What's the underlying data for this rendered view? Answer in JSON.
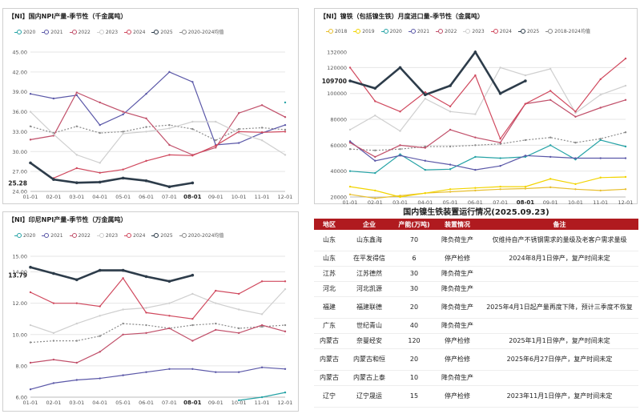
{
  "colors": {
    "2018": "#e8bf2e",
    "2019": "#f2d400",
    "2020": "#26a3a6",
    "2021": "#5b58a8",
    "2022": "#c1506a",
    "2023": "#cfcfcf",
    "2024": "#d0495e",
    "2025": "#2d3c4a",
    "avg": "#8a8a8a",
    "header_bg": "#b01a1f"
  },
  "chart_data": [
    {
      "type": "line",
      "title": "【NI】国内NPI产量-季节性（千金属吨）",
      "categories": [
        "01-01",
        "02-01",
        "03-01",
        "04-01",
        "05-01",
        "06-01",
        "07-01",
        "08-01",
        "09-01",
        "10-01",
        "11-01",
        "12-01"
      ],
      "y_ticks": [
        "24.00",
        "27.00",
        "30.00",
        "33.00",
        "36.00",
        "39.00",
        "42.00",
        "45.00"
      ],
      "ylim": [
        24,
        45
      ],
      "latest_label": "25.28",
      "legend": [
        "2020",
        "2021",
        "2022",
        "2023",
        "2024",
        "2025",
        "2020-2024均值"
      ],
      "series": [
        {
          "name": "2021",
          "values": [
            38.7,
            38.0,
            38.5,
            34.0,
            35.6,
            38.7,
            42.0,
            40.5,
            31.0,
            31.3,
            32.8,
            34.0
          ]
        },
        {
          "name": "2022",
          "values": [
            31.8,
            32.4,
            38.9,
            37.4,
            36.0,
            35.0,
            31.0,
            29.5,
            30.6,
            35.8,
            37.0,
            35.2
          ]
        },
        {
          "name": "2023",
          "values": [
            36.0,
            32.6,
            29.5,
            28.3,
            32.7,
            33.0,
            33.5,
            34.5,
            34.5,
            32.8,
            31.7,
            29.5
          ]
        },
        {
          "name": "2024",
          "values": [
            null,
            26.0,
            27.5,
            26.8,
            27.3,
            28.6,
            29.5,
            29.4,
            30.9,
            33.0,
            32.9,
            33.0
          ]
        },
        {
          "name": "2025",
          "values": [
            28.3,
            25.8,
            25.3,
            25.4,
            26.0,
            25.6,
            24.7,
            25.28,
            null,
            null,
            null,
            null
          ]
        },
        {
          "name": "2020-2024均值",
          "values": [
            33.8,
            32.8,
            33.8,
            32.8,
            33.0,
            33.7,
            34.0,
            33.4,
            31.7,
            33.4,
            33.6,
            33.3
          ]
        },
        {
          "name": "2020",
          "values": [
            null,
            null,
            null,
            null,
            null,
            null,
            null,
            null,
            null,
            null,
            null,
            37.4
          ]
        }
      ]
    },
    {
      "type": "line",
      "title": "【NI】镍铁（包括镍生铁）月度进口量-季节性（金属吨）",
      "categories": [
        "01-01",
        "02-01",
        "03-01",
        "04-01",
        "05-01",
        "06-01",
        "07-01",
        "08-01",
        "09-01",
        "10-01",
        "11-01",
        "12-01"
      ],
      "y_ticks": [
        "20000",
        "40000",
        "60000",
        "80000",
        "100000",
        "120000"
      ],
      "extra_tick": "132000",
      "ylim": [
        20000,
        132000
      ],
      "latest_label": "109700",
      "legend": [
        "2018",
        "2019",
        "2020",
        "2021",
        "2022",
        "2023",
        "2024",
        "2025",
        "2018-2024均值"
      ],
      "series": [
        {
          "name": "2018",
          "values": [
            22000,
            19000,
            21000,
            23000,
            24000,
            25000,
            26000,
            26500,
            27500,
            26000,
            25000,
            26000
          ]
        },
        {
          "name": "2019",
          "values": [
            28000,
            25000,
            20000,
            23000,
            26000,
            27000,
            28000,
            28000,
            34000,
            30000,
            35000,
            35500
          ]
        },
        {
          "name": "2020",
          "values": [
            40000,
            38500,
            53000,
            41000,
            41500,
            51000,
            50000,
            51000,
            60000,
            49000,
            64000,
            59000
          ]
        },
        {
          "name": "2021",
          "values": [
            63000,
            48000,
            52000,
            48000,
            45000,
            41000,
            44000,
            52000,
            51000,
            50000,
            50000,
            50000
          ]
        },
        {
          "name": "2022",
          "values": [
            62000,
            51000,
            60000,
            58000,
            72000,
            66000,
            62000,
            92000,
            95000,
            82000,
            89000,
            95000
          ]
        },
        {
          "name": "2023",
          "values": [
            72000,
            83000,
            71000,
            96000,
            86000,
            84000,
            120000,
            114000,
            119000,
            85000,
            99000,
            106000
          ]
        },
        {
          "name": "2024",
          "values": [
            120000,
            94000,
            86000,
            101000,
            90000,
            114000,
            65000,
            92000,
            102000,
            86000,
            111000,
            127000
          ]
        },
        {
          "name": "2025",
          "values": [
            109700,
            104000,
            120000,
            99000,
            106000,
            132000,
            100000,
            109700,
            null,
            null,
            null,
            null
          ]
        },
        {
          "name": "2018-2024均值",
          "values": [
            57000,
            56000,
            57000,
            59000,
            59000,
            60000,
            61000,
            64000,
            66000,
            62000,
            65000,
            70000
          ]
        }
      ]
    },
    {
      "type": "line",
      "title": "【NI】印尼NPI产量-季节性（万金属吨）",
      "categories": [
        "01-01",
        "02-01",
        "03-01",
        "04-01",
        "05-01",
        "06-01",
        "07-01",
        "08-01",
        "09-01",
        "10-01",
        "11-01",
        "12-01"
      ],
      "y_ticks": [
        "6.00",
        "8.00",
        "10.00",
        "12.00",
        "14.00",
        "15.00"
      ],
      "ylim": [
        6,
        15
      ],
      "latest_label": "13.79",
      "legend": [
        "2020",
        "2021",
        "2022",
        "2023",
        "2024",
        "2025",
        "2020-2024均值"
      ],
      "series": [
        {
          "name": "2020",
          "values": [
            null,
            null,
            null,
            null,
            null,
            null,
            null,
            null,
            null,
            5.8,
            6.0,
            6.3
          ]
        },
        {
          "name": "2021",
          "values": [
            6.5,
            6.9,
            7.1,
            7.2,
            7.4,
            7.6,
            7.8,
            7.8,
            7.6,
            7.6,
            7.9,
            7.8
          ]
        },
        {
          "name": "2022",
          "values": [
            8.2,
            8.4,
            8.2,
            8.9,
            10.0,
            10.1,
            10.4,
            9.6,
            10.3,
            10.1,
            10.6,
            10.2
          ]
        },
        {
          "name": "2023",
          "values": [
            10.6,
            10.1,
            10.7,
            11.2,
            11.6,
            11.7,
            12.0,
            12.6,
            12.0,
            11.6,
            11.3,
            12.9
          ]
        },
        {
          "name": "2024",
          "values": [
            12.7,
            12.0,
            12.0,
            11.8,
            13.6,
            11.4,
            11.2,
            11.0,
            12.8,
            12.6,
            13.4,
            13.4
          ]
        },
        {
          "name": "2025",
          "values": [
            14.3,
            13.9,
            13.5,
            14.1,
            14.1,
            13.7,
            13.4,
            13.79,
            null,
            null,
            null,
            null
          ]
        },
        {
          "name": "2020-2024均值",
          "values": [
            9.5,
            9.6,
            9.6,
            9.9,
            10.7,
            10.6,
            10.4,
            10.6,
            10.7,
            10.4,
            10.5,
            10.6
          ]
        }
      ]
    }
  ],
  "table": {
    "title": "国内镍生铁装置运行情况(2025.09.23)",
    "headers": [
      "地区",
      "企业",
      "产能(万吨)",
      "装置情况",
      "备注"
    ],
    "rows": [
      [
        "山东",
        "山东鑫海",
        "70",
        "降负荷生产",
        "仅维持自产不锈钢需求的量级及老客户需求量级"
      ],
      [
        "山东",
        "在平发得信",
        "6",
        "停产检修",
        "2024年8月1日停产，复产时间未定"
      ],
      [
        "江苏",
        "江苏德然",
        "30",
        "降负荷生产",
        ""
      ],
      [
        "河北",
        "河北凯源",
        "30",
        "降负荷生产",
        ""
      ],
      [
        "福建",
        "福建联德",
        "20",
        "降负荷生产",
        "2025年4月1日起产量再度下降，预计三季度不恢复"
      ],
      [
        "广东",
        "世纪青山",
        "40",
        "降负荷生产",
        ""
      ],
      [
        "内蒙古",
        "奈曼经安",
        "120",
        "停产检修",
        "2025年1月1日停产，复产时间未定"
      ],
      [
        "内蒙古",
        "内蒙古和恒",
        "20",
        "停产检修",
        "2025年6月27日停产，复产时间未定"
      ],
      [
        "内蒙古",
        "内蒙古上泰",
        "10",
        "降负荷生产",
        ""
      ],
      [
        "辽宁",
        "辽宁晟运",
        "15",
        "停产检修",
        "2023年11月1日停产，复产时间未定"
      ]
    ]
  }
}
